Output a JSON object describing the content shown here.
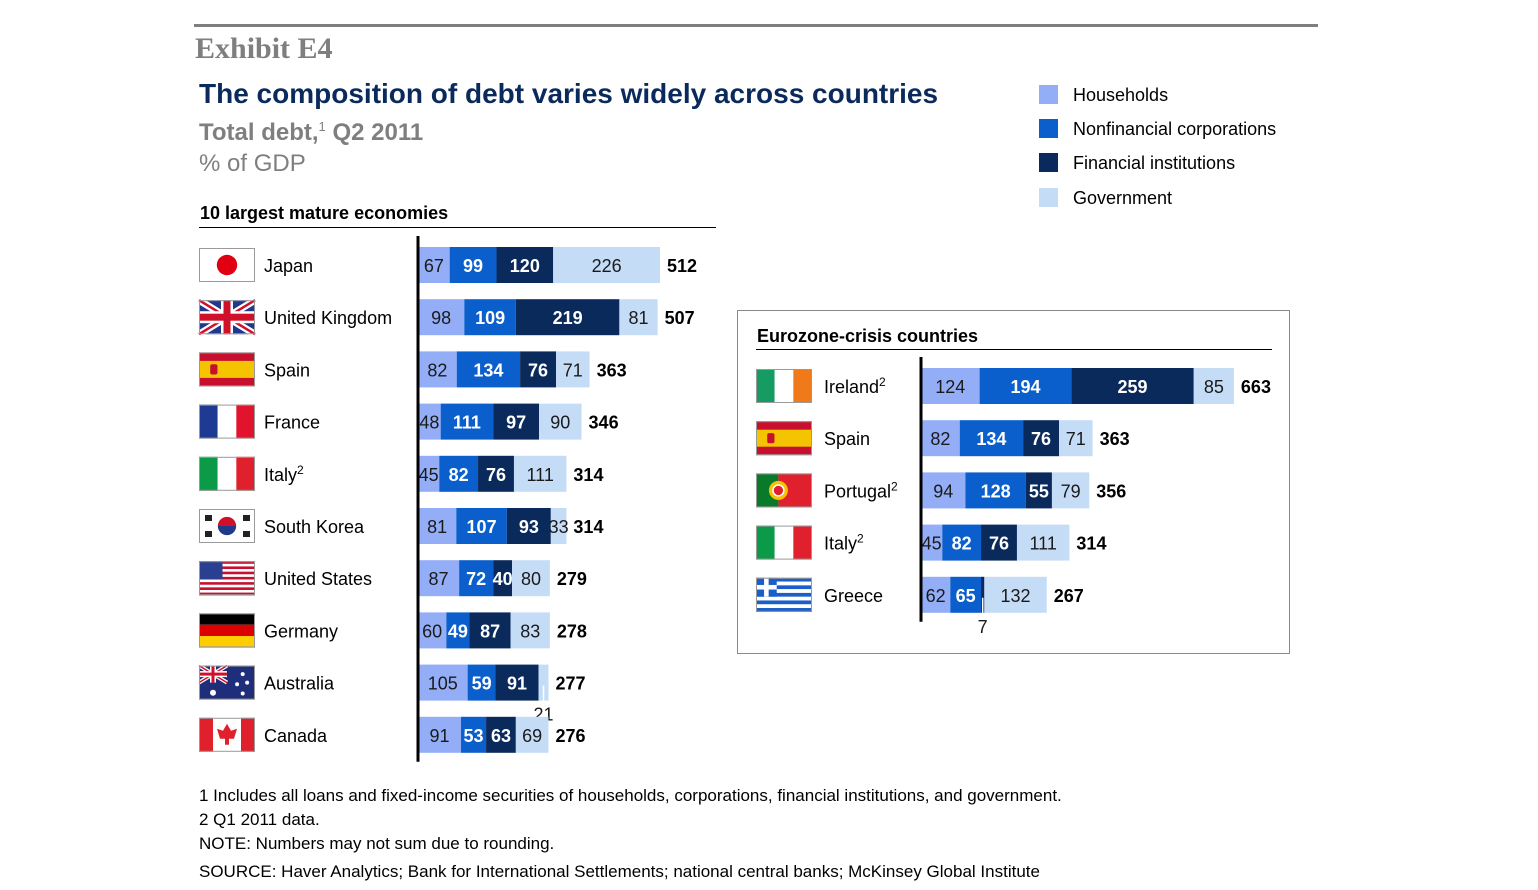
{
  "header": {
    "exhibit": "Exhibit E4",
    "title": "The composition of debt varies widely across countries",
    "subtitle": "Total debt,",
    "subtitle_sup": "1",
    "subtitle_period": " Q2 2011",
    "unit": "% of GDP"
  },
  "legend": [
    {
      "label": "Households",
      "color": "#93aef7"
    },
    {
      "label": "Nonfinancial corporations",
      "color": "#0a5fcc"
    },
    {
      "label": "Financial institutions",
      "color": "#0b2a5c"
    },
    {
      "label": "Government",
      "color": "#c5dcf7"
    }
  ],
  "chart_data": [
    {
      "type": "bar",
      "orientation": "horizontal",
      "stacked": true,
      "title": "10 largest mature economies",
      "series_names": [
        "Households",
        "Nonfinancial corporations",
        "Financial institutions",
        "Government"
      ],
      "rows": [
        {
          "country": "Japan",
          "flag": "japan-flag",
          "note": "",
          "values": [
            67,
            99,
            120,
            226
          ],
          "total": 512
        },
        {
          "country": "United Kingdom",
          "flag": "uk-flag",
          "note": "",
          "values": [
            98,
            109,
            219,
            81
          ],
          "total": 507
        },
        {
          "country": "Spain",
          "flag": "spain-flag",
          "note": "",
          "values": [
            82,
            134,
            76,
            71
          ],
          "total": 363
        },
        {
          "country": "France",
          "flag": "france-flag",
          "note": "",
          "values": [
            48,
            111,
            97,
            90
          ],
          "total": 346
        },
        {
          "country": "Italy",
          "flag": "italy-flag",
          "note": "2",
          "values": [
            45,
            82,
            76,
            111
          ],
          "total": 314
        },
        {
          "country": "South Korea",
          "flag": "south-korea-flag",
          "note": "",
          "values": [
            81,
            107,
            93,
            33
          ],
          "total": 314
        },
        {
          "country": "United States",
          "flag": "usa-flag",
          "note": "",
          "values": [
            87,
            72,
            40,
            80
          ],
          "total": 279
        },
        {
          "country": "Germany",
          "flag": "germany-flag",
          "note": "",
          "values": [
            60,
            49,
            87,
            83
          ],
          "total": 278
        },
        {
          "country": "Australia",
          "flag": "australia-flag",
          "note": "",
          "values": [
            105,
            59,
            91,
            21
          ],
          "total": 277
        },
        {
          "country": "Canada",
          "flag": "canada-flag",
          "note": "",
          "values": [
            91,
            53,
            63,
            69
          ],
          "total": 276
        }
      ]
    },
    {
      "type": "bar",
      "orientation": "horizontal",
      "stacked": true,
      "title": "Eurozone-crisis countries",
      "series_names": [
        "Households",
        "Nonfinancial corporations",
        "Financial institutions",
        "Government"
      ],
      "rows": [
        {
          "country": "Ireland",
          "flag": "ireland-flag",
          "note": "2",
          "values": [
            124,
            194,
            259,
            85
          ],
          "total": 663
        },
        {
          "country": "Spain",
          "flag": "spain-flag",
          "note": "",
          "values": [
            82,
            134,
            76,
            71
          ],
          "total": 363
        },
        {
          "country": "Portugal",
          "flag": "portugal-flag",
          "note": "2",
          "values": [
            94,
            128,
            55,
            79
          ],
          "total": 356
        },
        {
          "country": "Italy",
          "flag": "italy-flag",
          "note": "2",
          "values": [
            45,
            82,
            76,
            111
          ],
          "total": 314
        },
        {
          "country": "Greece",
          "flag": "greece-flag",
          "note": "",
          "values": [
            62,
            65,
            7,
            132
          ],
          "total": 267
        }
      ]
    }
  ],
  "footnotes": [
    "1  Includes all loans and fixed-income securities of households, corporations, financial institutions, and government.",
    "2  Q1 2011 data.",
    "NOTE: Numbers may not sum due to rounding.",
    "SOURCE: Haver Analytics; Bank for International Settlements; national central banks; McKinsey Global Institute"
  ]
}
